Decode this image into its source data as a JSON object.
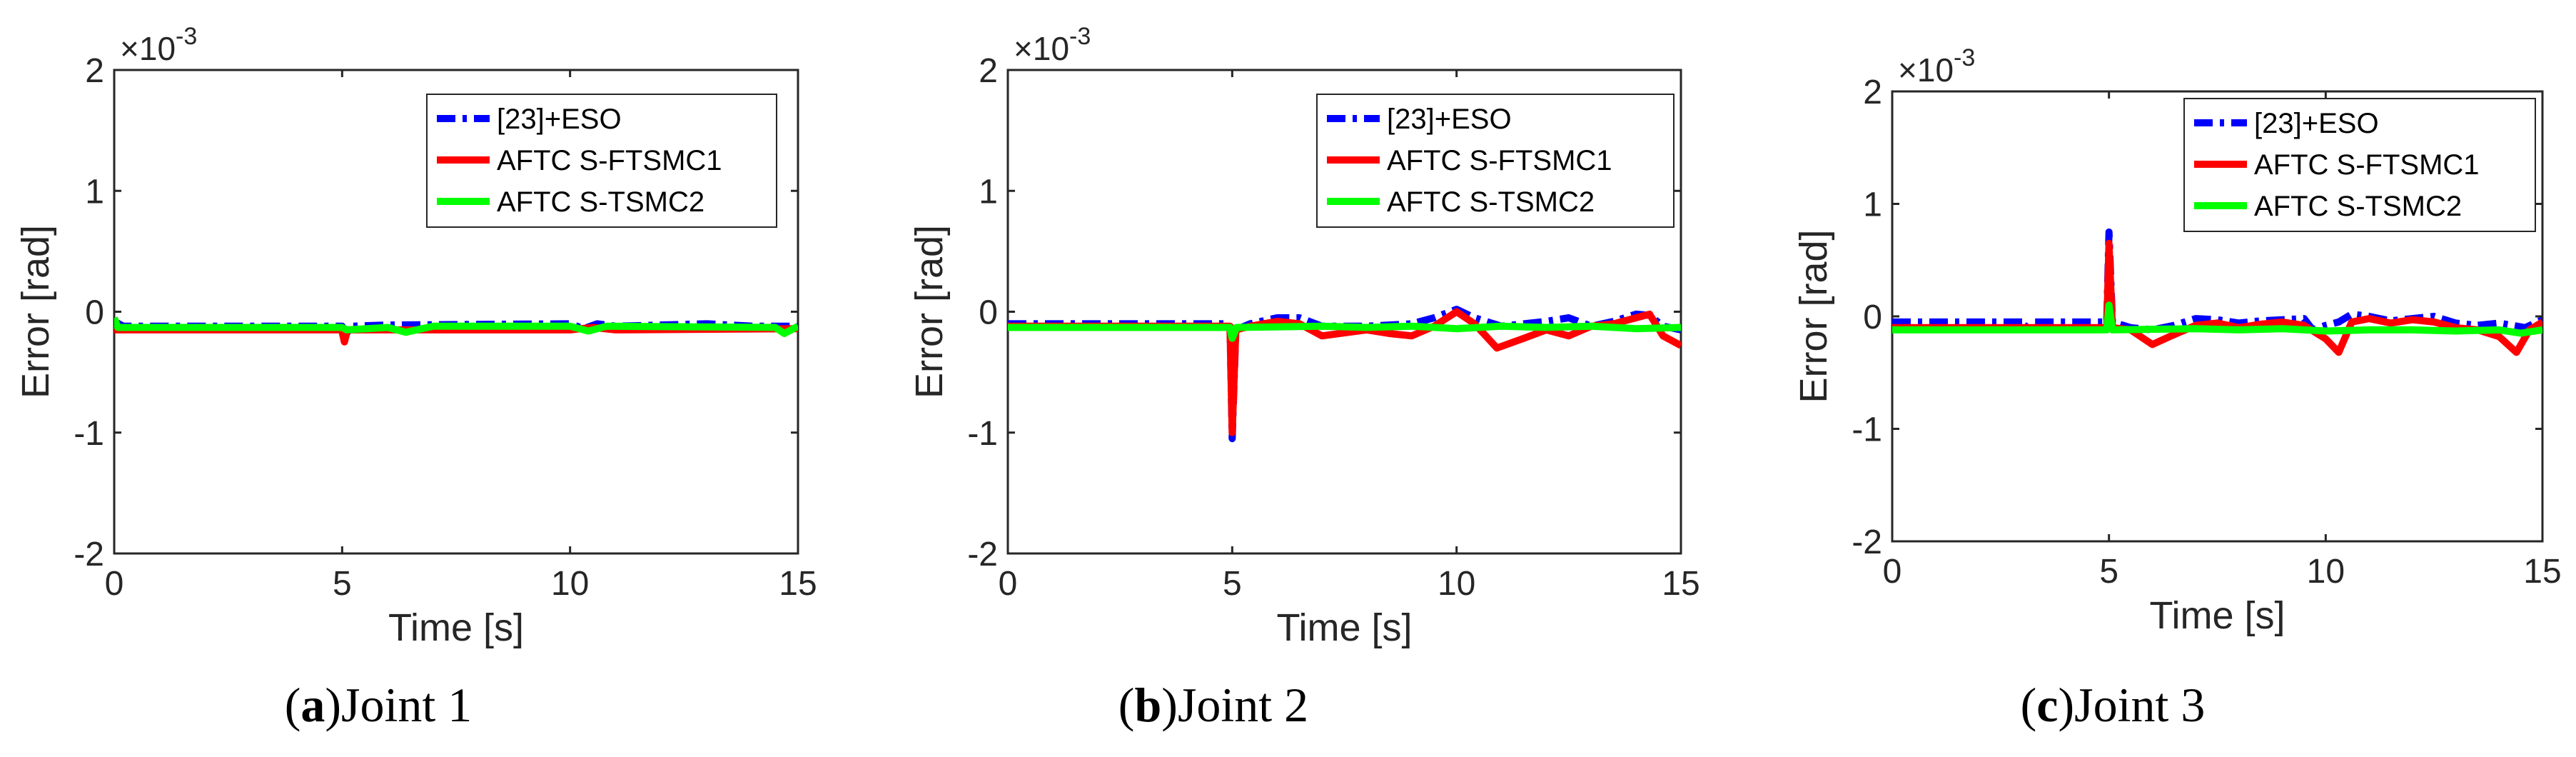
{
  "chart_data": [
    {
      "type": "line",
      "panel": "a",
      "caption": {
        "letter": "a",
        "text": "Joint 1"
      },
      "xlabel": "Time [s]",
      "ylabel": "Error [rad]",
      "xlim": [
        0,
        15
      ],
      "ylim": [
        -2,
        2
      ],
      "xticks": [
        "0",
        "5",
        "10",
        "15"
      ],
      "yticks": [
        "-2",
        "-1",
        "0",
        "1",
        "2"
      ],
      "y_scale_label": "×10",
      "y_scale_exponent": "-3",
      "legend_position": "top-right",
      "series": [
        {
          "name": "[23]+ESO",
          "color": "#0000ff",
          "style": "dashdot",
          "points": [
            [
              0,
              -0.08
            ],
            [
              0.2,
              -0.12
            ],
            [
              5,
              -0.12
            ],
            [
              5.1,
              -0.18
            ],
            [
              5.2,
              -0.12
            ],
            [
              6,
              -0.11
            ],
            [
              10,
              -0.1
            ],
            [
              10.3,
              -0.14
            ],
            [
              10.6,
              -0.1
            ],
            [
              11,
              -0.12
            ],
            [
              13,
              -0.1
            ],
            [
              14,
              -0.12
            ],
            [
              15,
              -0.12
            ]
          ]
        },
        {
          "name": "AFTC S-FTSMC1",
          "color": "#ff0000",
          "style": "solid",
          "points": [
            [
              0,
              -0.15
            ],
            [
              0.1,
              -0.15
            ],
            [
              4.99,
              -0.15
            ],
            [
              5.05,
              -0.25
            ],
            [
              5.12,
              -0.15
            ],
            [
              8,
              -0.15
            ],
            [
              10,
              -0.15
            ],
            [
              10.5,
              -0.13
            ],
            [
              11,
              -0.15
            ],
            [
              15,
              -0.14
            ]
          ]
        },
        {
          "name": "AFTC S-TSMC2",
          "color": "#00ff00",
          "style": "solid",
          "points": [
            [
              0,
              -0.05
            ],
            [
              0.08,
              -0.13
            ],
            [
              5,
              -0.13
            ],
            [
              5.1,
              -0.15
            ],
            [
              6,
              -0.13
            ],
            [
              6.4,
              -0.17
            ],
            [
              7,
              -0.12
            ],
            [
              10,
              -0.12
            ],
            [
              10.4,
              -0.16
            ],
            [
              10.8,
              -0.12
            ],
            [
              14.5,
              -0.13
            ],
            [
              14.7,
              -0.18
            ],
            [
              15,
              -0.12
            ]
          ]
        }
      ]
    },
    {
      "type": "line",
      "panel": "b",
      "caption": {
        "letter": "b",
        "text": "Joint 2"
      },
      "xlabel": "Time [s]",
      "ylabel": "Error [rad]",
      "xlim": [
        0,
        15
      ],
      "ylim": [
        -2,
        2
      ],
      "xticks": [
        "0",
        "5",
        "10",
        "15"
      ],
      "yticks": [
        "-2",
        "-1",
        "0",
        "1",
        "2"
      ],
      "y_scale_label": "×10",
      "y_scale_exponent": "-3",
      "legend_position": "top-right",
      "series": [
        {
          "name": "[23]+ESO",
          "color": "#0000ff",
          "style": "dashdot",
          "points": [
            [
              0,
              -0.1
            ],
            [
              4.95,
              -0.1
            ],
            [
              5.0,
              -1.05
            ],
            [
              5.08,
              -0.15
            ],
            [
              5.4,
              -0.1
            ],
            [
              6,
              -0.05
            ],
            [
              6.5,
              -0.05
            ],
            [
              7,
              -0.12
            ],
            [
              8,
              -0.12
            ],
            [
              9,
              -0.1
            ],
            [
              9.5,
              -0.05
            ],
            [
              10,
              0.02
            ],
            [
              10.4,
              -0.05
            ],
            [
              11,
              -0.12
            ],
            [
              12,
              -0.08
            ],
            [
              12.5,
              -0.05
            ],
            [
              13,
              -0.12
            ],
            [
              13.5,
              -0.08
            ],
            [
              14,
              -0.02
            ],
            [
              14.3,
              -0.03
            ],
            [
              14.6,
              -0.12
            ],
            [
              15,
              -0.15
            ]
          ]
        },
        {
          "name": "AFTC S-FTSMC1",
          "color": "#ff0000",
          "style": "solid",
          "points": [
            [
              0,
              -0.12
            ],
            [
              4.95,
              -0.12
            ],
            [
              5.0,
              -1.0
            ],
            [
              5.08,
              -0.15
            ],
            [
              5.4,
              -0.12
            ],
            [
              6,
              -0.08
            ],
            [
              6.5,
              -0.1
            ],
            [
              7,
              -0.2
            ],
            [
              8,
              -0.15
            ],
            [
              8.5,
              -0.18
            ],
            [
              9,
              -0.2
            ],
            [
              9.5,
              -0.12
            ],
            [
              10,
              0.0
            ],
            [
              10.4,
              -0.1
            ],
            [
              10.9,
              -0.3
            ],
            [
              11.5,
              -0.22
            ],
            [
              12,
              -0.15
            ],
            [
              12.5,
              -0.2
            ],
            [
              13,
              -0.12
            ],
            [
              13.5,
              -0.1
            ],
            [
              14,
              -0.05
            ],
            [
              14.3,
              -0.02
            ],
            [
              14.6,
              -0.2
            ],
            [
              15,
              -0.28
            ]
          ]
        },
        {
          "name": "AFTC S-TSMC2",
          "color": "#00ff00",
          "style": "solid",
          "points": [
            [
              0,
              -0.13
            ],
            [
              4.95,
              -0.13
            ],
            [
              5.0,
              -0.22
            ],
            [
              5.1,
              -0.13
            ],
            [
              7,
              -0.12
            ],
            [
              8,
              -0.13
            ],
            [
              9,
              -0.12
            ],
            [
              10,
              -0.14
            ],
            [
              11,
              -0.12
            ],
            [
              12,
              -0.13
            ],
            [
              13,
              -0.12
            ],
            [
              14,
              -0.14
            ],
            [
              15,
              -0.13
            ]
          ]
        }
      ]
    },
    {
      "type": "line",
      "panel": "c",
      "caption": {
        "letter": "c",
        "text": "Joint 3"
      },
      "xlabel": "Time [s]",
      "ylabel": "Error [rad]",
      "xlim": [
        0,
        15
      ],
      "ylim": [
        -2,
        2
      ],
      "xticks": [
        "0",
        "5",
        "10",
        "15"
      ],
      "yticks": [
        "-2",
        "-1",
        "0",
        "1",
        "2"
      ],
      "y_scale_label": "×10",
      "y_scale_exponent": "-3",
      "legend_position": "top-right",
      "series": [
        {
          "name": "[23]+ESO",
          "color": "#0000ff",
          "style": "dashdot",
          "points": [
            [
              0,
              -0.05
            ],
            [
              3,
              -0.05
            ],
            [
              3.1,
              -0.1
            ],
            [
              3.2,
              -0.05
            ],
            [
              4.95,
              -0.05
            ],
            [
              5.0,
              0.75
            ],
            [
              5.08,
              -0.05
            ],
            [
              5.5,
              -0.1
            ],
            [
              6,
              -0.12
            ],
            [
              6.5,
              -0.08
            ],
            [
              7,
              -0.02
            ],
            [
              7.5,
              -0.03
            ],
            [
              8,
              -0.06
            ],
            [
              8.5,
              -0.04
            ],
            [
              9,
              -0.03
            ],
            [
              9.5,
              -0.02
            ],
            [
              9.7,
              -0.12
            ],
            [
              10,
              -0.08
            ],
            [
              10.3,
              -0.05
            ],
            [
              10.6,
              0.02
            ],
            [
              11,
              0.0
            ],
            [
              11.5,
              -0.04
            ],
            [
              12,
              -0.02
            ],
            [
              12.5,
              0.0
            ],
            [
              13,
              -0.06
            ],
            [
              13.5,
              -0.08
            ],
            [
              14,
              -0.06
            ],
            [
              14.6,
              -0.1
            ],
            [
              15,
              -0.03
            ]
          ]
        },
        {
          "name": "AFTC S-FTSMC1",
          "color": "#ff0000",
          "style": "solid",
          "points": [
            [
              0,
              -0.1
            ],
            [
              4.95,
              -0.1
            ],
            [
              5.0,
              0.65
            ],
            [
              5.08,
              -0.1
            ],
            [
              5.5,
              -0.12
            ],
            [
              6,
              -0.25
            ],
            [
              6.4,
              -0.18
            ],
            [
              7,
              -0.08
            ],
            [
              7.5,
              -0.06
            ],
            [
              8,
              -0.1
            ],
            [
              8.5,
              -0.07
            ],
            [
              9,
              -0.05
            ],
            [
              9.5,
              -0.08
            ],
            [
              10,
              -0.2
            ],
            [
              10.3,
              -0.32
            ],
            [
              10.6,
              -0.05
            ],
            [
              11,
              -0.02
            ],
            [
              11.5,
              -0.06
            ],
            [
              12,
              -0.03
            ],
            [
              12.5,
              -0.05
            ],
            [
              13,
              -0.1
            ],
            [
              13.5,
              -0.12
            ],
            [
              14,
              -0.18
            ],
            [
              14.4,
              -0.32
            ],
            [
              14.7,
              -0.12
            ],
            [
              15,
              -0.05
            ]
          ]
        },
        {
          "name": "AFTC S-TSMC2",
          "color": "#00ff00",
          "style": "solid",
          "points": [
            [
              0,
              -0.12
            ],
            [
              4.95,
              -0.12
            ],
            [
              5.0,
              0.1
            ],
            [
              5.08,
              -0.12
            ],
            [
              7,
              -0.11
            ],
            [
              8,
              -0.12
            ],
            [
              9,
              -0.11
            ],
            [
              10,
              -0.13
            ],
            [
              11,
              -0.12
            ],
            [
              12,
              -0.12
            ],
            [
              13,
              -0.13
            ],
            [
              14,
              -0.12
            ],
            [
              14.5,
              -0.15
            ],
            [
              15,
              -0.12
            ]
          ]
        }
      ]
    }
  ]
}
